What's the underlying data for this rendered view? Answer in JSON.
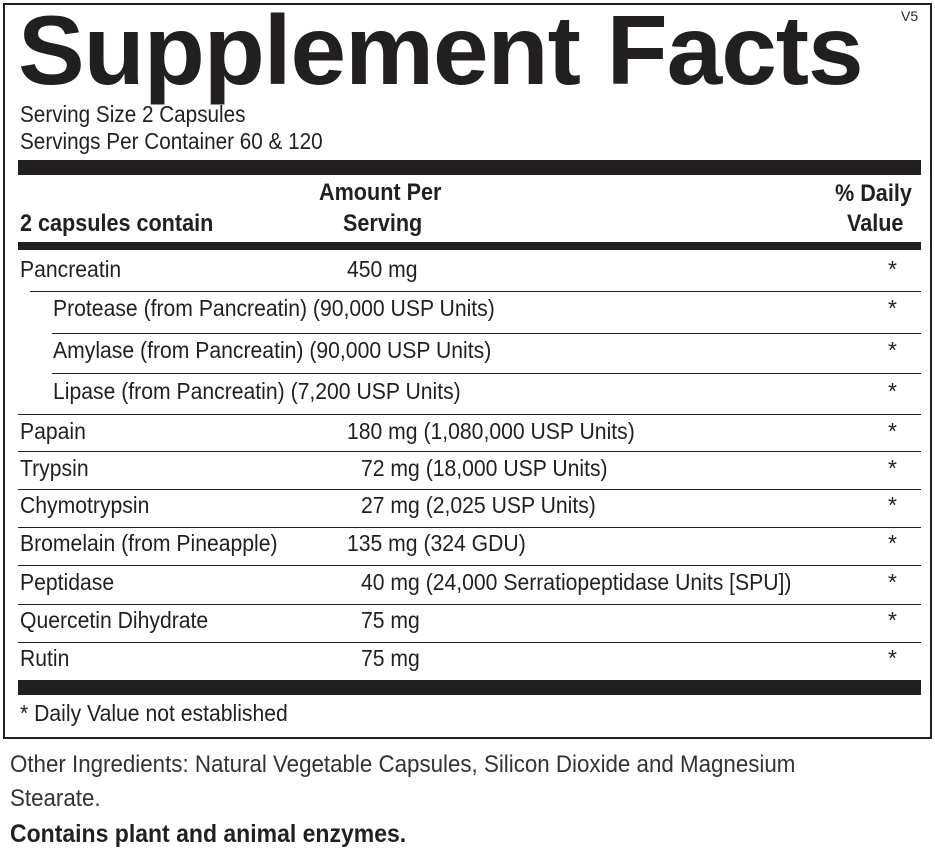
{
  "label": {
    "title": "Supplement Facts",
    "version": "V5",
    "serving_size": "Serving Size  2 Capsules",
    "servings_per_container": "Servings Per Container  60 & 120",
    "header": {
      "col1": "2 capsules contain",
      "col2_line1": "Amount Per",
      "col2_line2": "Serving",
      "col3_line1": "% Daily",
      "col3_line2": "Value"
    },
    "rows": [
      {
        "name": "Pancreatin",
        "amount": "450 mg",
        "dv": "*"
      },
      {
        "name": "Protease (from Pancreatin) (90,000 USP Units)",
        "amount": "",
        "dv": "*",
        "sub": true
      },
      {
        "name": "Amylase (from Pancreatin) (90,000 USP Units)",
        "amount": "",
        "dv": "*",
        "sub": true
      },
      {
        "name": "Lipase (from Pancreatin) (7,200 USP Units)",
        "amount": "",
        "dv": "*",
        "sub": true
      },
      {
        "name": "Papain",
        "amount": "180 mg (1,080,000 USP Units)",
        "dv": "*"
      },
      {
        "name": "Trypsin",
        "amount": "72 mg (18,000 USP Units)",
        "dv": "*"
      },
      {
        "name": "Chymotrypsin",
        "amount": "27 mg (2,025 USP Units)",
        "dv": "*"
      },
      {
        "name": "Bromelain (from Pineapple)",
        "amount": "135 mg (324 GDU)",
        "dv": "*"
      },
      {
        "name": "Peptidase",
        "amount": "40 mg (24,000 Serratiopeptidase Units [SPU])",
        "dv": "*"
      },
      {
        "name": "Quercetin Dihydrate",
        "amount": "75 mg",
        "dv": "*"
      },
      {
        "name": "Rutin",
        "amount": "75 mg",
        "dv": "*"
      }
    ],
    "footnote": "* Daily Value not established"
  },
  "other_ingredients": "Other Ingredients: Natural Vegetable Capsules, Silicon Dioxide and Magnesium Stearate.",
  "contains": "Contains plant and animal enzymes."
}
